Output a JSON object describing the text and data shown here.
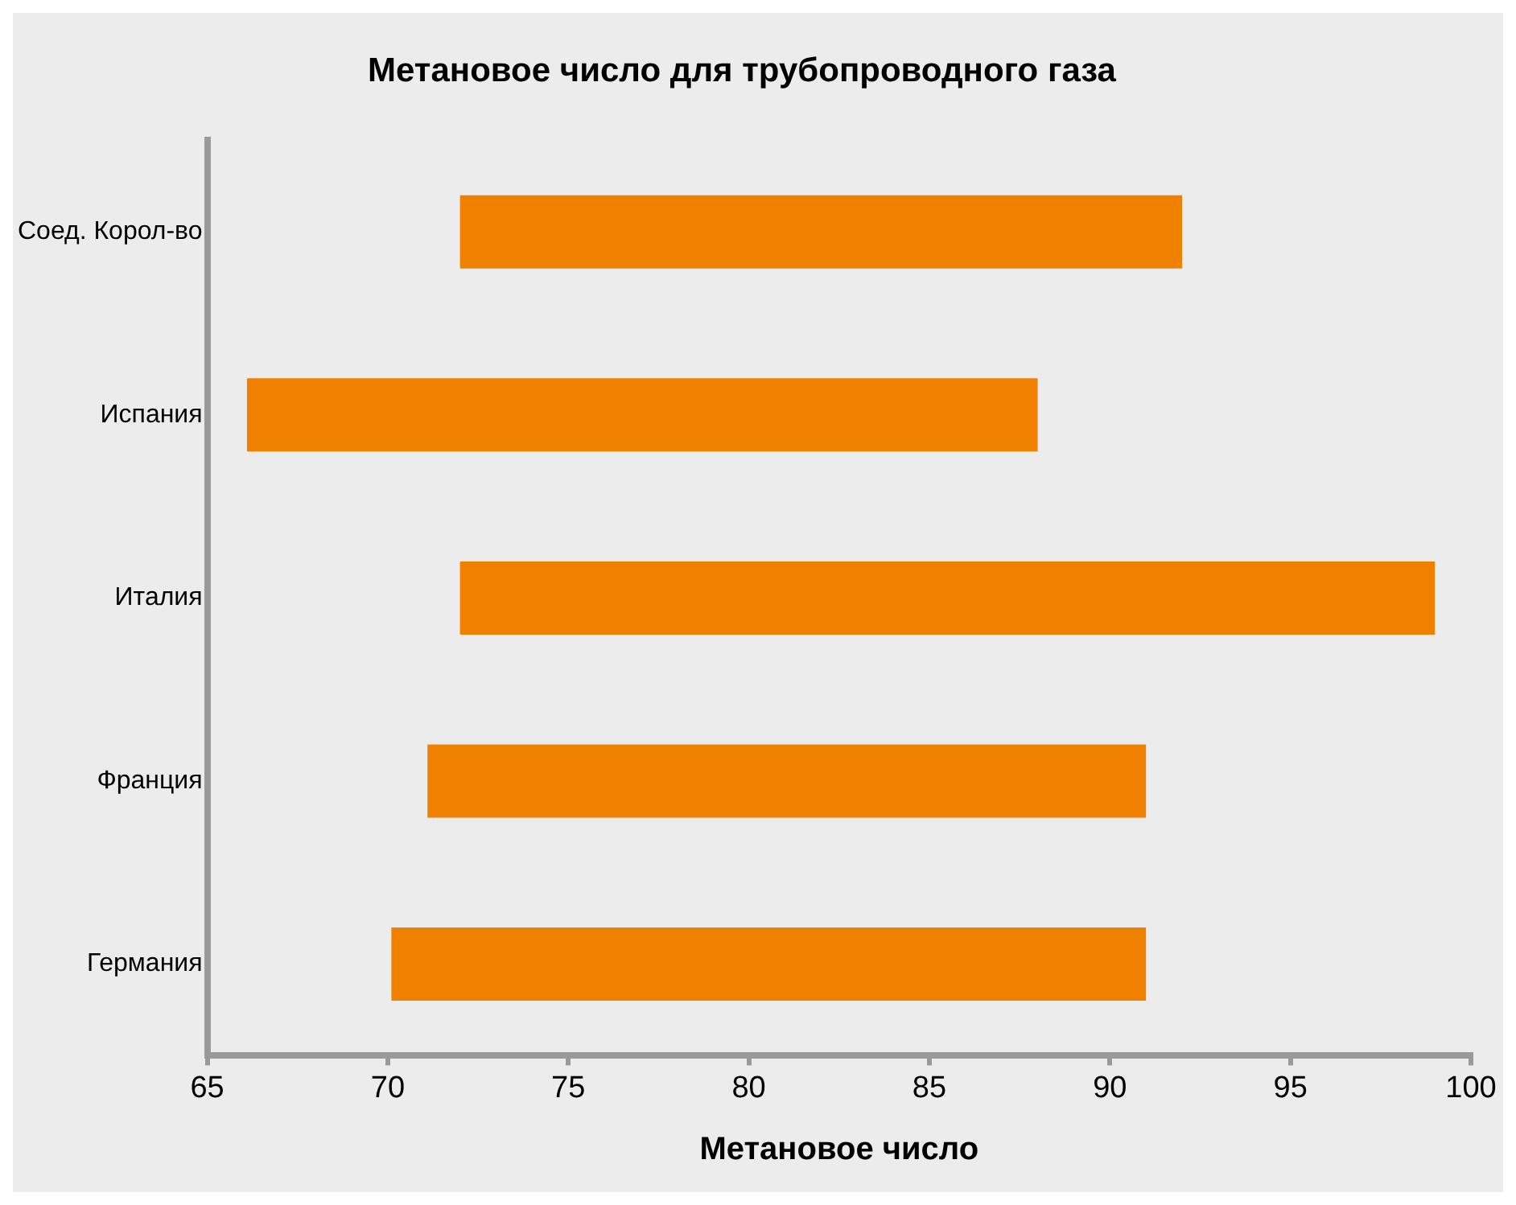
{
  "chart_data": {
    "type": "bar",
    "orientation": "horizontal",
    "title": "Метановое число для трубопроводного газа",
    "xlabel": "Метановое число",
    "categories": [
      "Соед. Корол-во",
      "Испания",
      "Италия",
      "Франция",
      "Германия"
    ],
    "base": [
      72,
      66.1,
      72,
      71.1,
      70.1
    ],
    "values": [
      20,
      21.9,
      27,
      19.9,
      20.9
    ],
    "color": "#f08000",
    "xlim": [
      65,
      100
    ],
    "xticks": [
      65,
      70,
      75,
      80,
      85,
      90,
      95,
      100
    ],
    "grid": false,
    "legend": false
  }
}
